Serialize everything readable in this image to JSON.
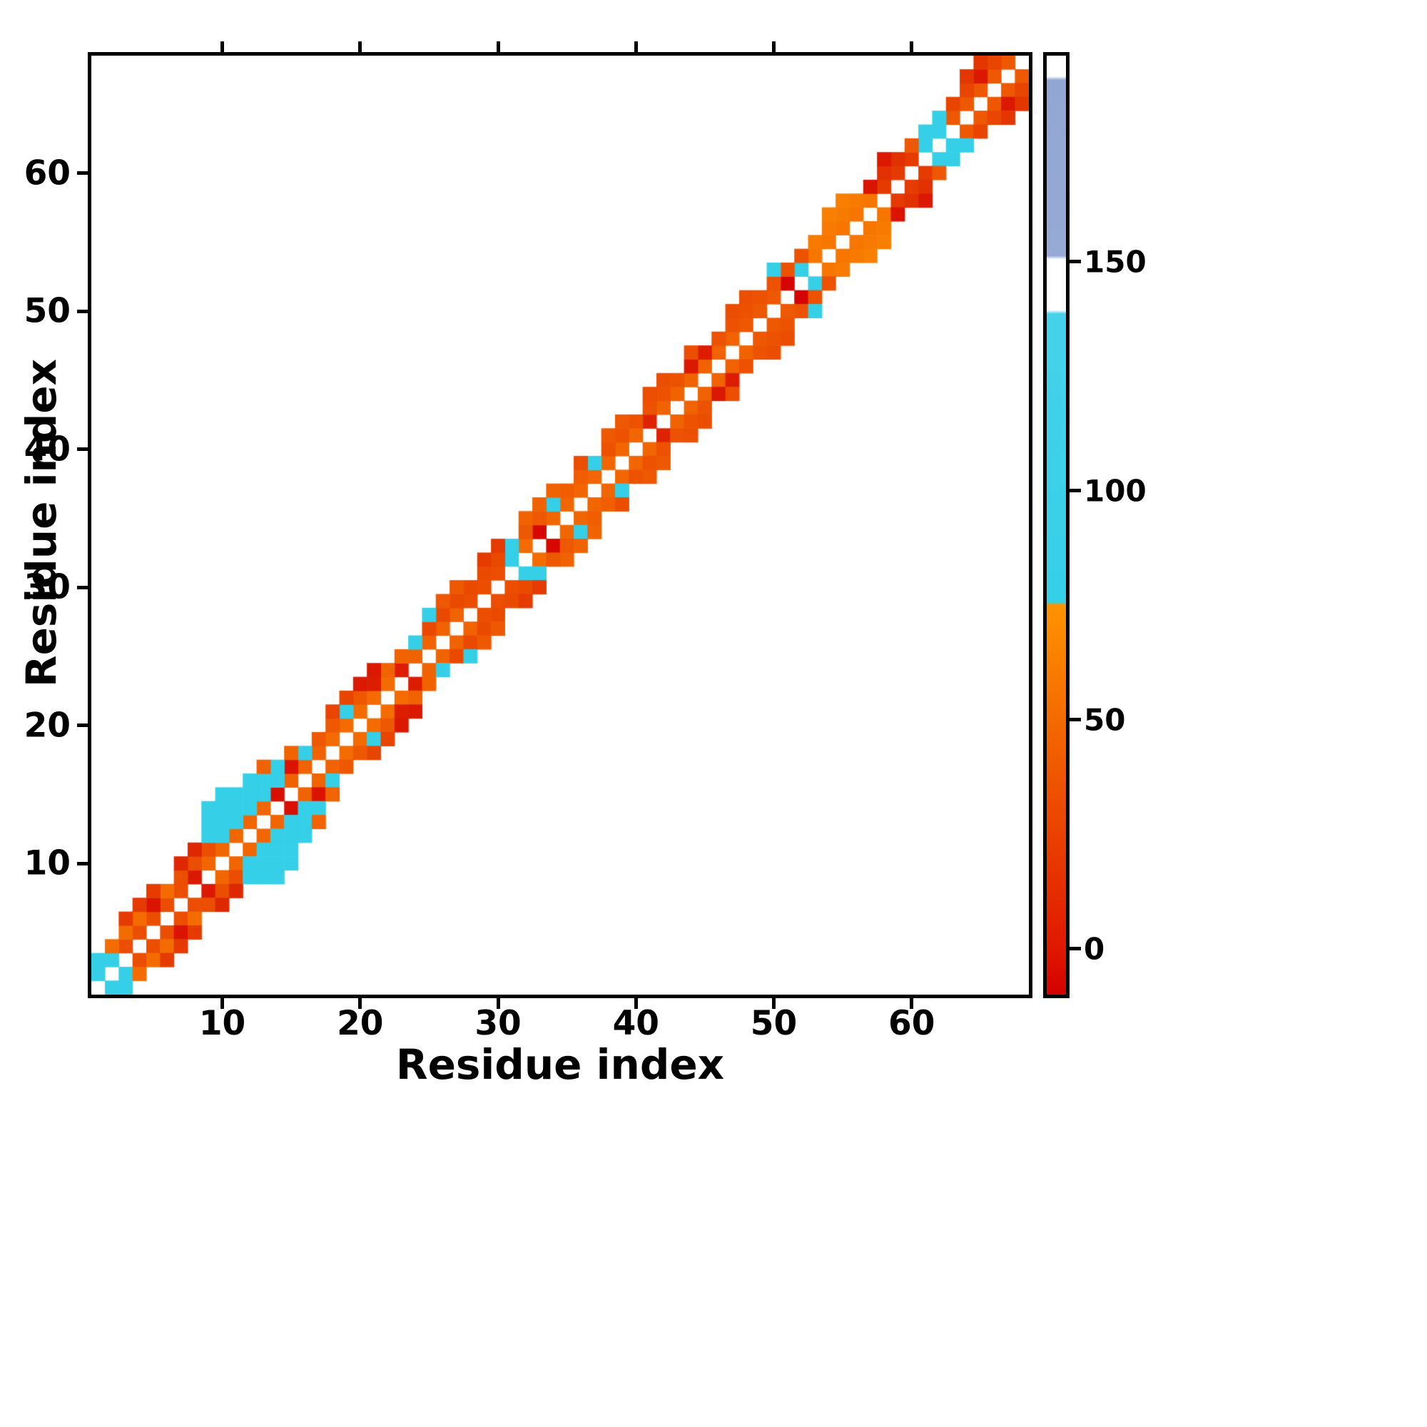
{
  "chart_data": {
    "type": "heatmap",
    "title": "",
    "xlabel": "Residue index",
    "ylabel": "Residue index",
    "x_ticks": [
      10,
      20,
      30,
      40,
      50,
      60
    ],
    "y_ticks": [
      10,
      20,
      30,
      40,
      50,
      60
    ],
    "axis_range": [
      0.5,
      68.5
    ],
    "n_residues": 68,
    "grid": false,
    "background_color": "#ffffff",
    "colors": {
      "low_red": "#d40000",
      "high_orange": "#ff9300",
      "cyan": "#35cfe8",
      "blue": "#97aad6",
      "empty": "#ffffff",
      "frame": "#000000"
    },
    "colorbar": {
      "position": "right",
      "vmin": -10,
      "vmax": 195,
      "ticks": [
        0,
        50,
        100,
        150
      ],
      "gradient_stops": [
        [
          0.0,
          "#d40000"
        ],
        [
          0.05,
          "#e01800"
        ],
        [
          0.415,
          "#ff9300"
        ],
        [
          0.418,
          "#35cfe8"
        ],
        [
          0.725,
          "#45d2ea"
        ],
        [
          0.729,
          "#ffffff"
        ],
        [
          0.783,
          "#ffffff"
        ],
        [
          0.787,
          "#97aad6"
        ],
        [
          0.974,
          "#92a6d4"
        ],
        [
          0.978,
          "#ffffff"
        ],
        [
          1.0,
          "#ffffff"
        ]
      ]
    },
    "bands_note": "Symmetric contact map: each band = [diagonal_offset, i_from, i_to, value]; cell (i,i+offset) and mirror (i+offset,i) get the value (colorbar units). Values <=75 map red->orange, 76-140 cyan, >140 light blue.",
    "bands": [
      [
        1,
        1,
        2,
        100
      ],
      [
        1,
        3,
        7,
        40
      ],
      [
        1,
        8,
        8,
        12
      ],
      [
        1,
        9,
        13,
        52
      ],
      [
        1,
        14,
        14,
        8
      ],
      [
        1,
        15,
        17,
        50
      ],
      [
        1,
        18,
        22,
        55
      ],
      [
        1,
        23,
        23,
        15
      ],
      [
        1,
        24,
        27,
        50
      ],
      [
        1,
        28,
        30,
        40
      ],
      [
        1,
        31,
        31,
        100
      ],
      [
        1,
        32,
        32,
        55
      ],
      [
        1,
        33,
        33,
        4
      ],
      [
        1,
        34,
        40,
        52
      ],
      [
        1,
        41,
        41,
        18
      ],
      [
        1,
        42,
        47,
        50
      ],
      [
        1,
        48,
        50,
        45
      ],
      [
        1,
        51,
        51,
        2
      ],
      [
        1,
        52,
        52,
        100
      ],
      [
        1,
        53,
        57,
        60
      ],
      [
        1,
        58,
        60,
        30
      ],
      [
        1,
        61,
        62,
        100
      ],
      [
        1,
        63,
        67,
        45
      ],
      [
        2,
        1,
        1,
        100
      ],
      [
        2,
        2,
        6,
        55
      ],
      [
        2,
        7,
        9,
        40
      ],
      [
        2,
        10,
        16,
        100
      ],
      [
        2,
        17,
        18,
        45
      ],
      [
        2,
        19,
        19,
        100
      ],
      [
        2,
        20,
        20,
        45
      ],
      [
        2,
        21,
        21,
        15
      ],
      [
        2,
        22,
        23,
        50
      ],
      [
        2,
        24,
        24,
        100
      ],
      [
        2,
        25,
        30,
        38
      ],
      [
        2,
        31,
        31,
        100
      ],
      [
        2,
        32,
        33,
        45
      ],
      [
        2,
        34,
        34,
        100
      ],
      [
        2,
        35,
        36,
        48
      ],
      [
        2,
        37,
        37,
        100
      ],
      [
        2,
        38,
        44,
        42
      ],
      [
        2,
        45,
        45,
        15
      ],
      [
        2,
        46,
        52,
        42
      ],
      [
        2,
        53,
        56,
        62
      ],
      [
        2,
        57,
        59,
        25
      ],
      [
        2,
        60,
        60,
        45
      ],
      [
        2,
        61,
        62,
        100
      ],
      [
        2,
        63,
        66,
        35
      ],
      [
        3,
        3,
        5,
        30
      ],
      [
        3,
        7,
        8,
        20
      ],
      [
        3,
        9,
        14,
        100
      ],
      [
        3,
        15,
        15,
        50
      ],
      [
        3,
        18,
        20,
        35
      ],
      [
        3,
        21,
        21,
        12
      ],
      [
        3,
        25,
        25,
        100
      ],
      [
        3,
        26,
        27,
        45
      ],
      [
        3,
        29,
        30,
        30
      ],
      [
        3,
        32,
        34,
        50
      ],
      [
        3,
        36,
        36,
        40
      ],
      [
        3,
        38,
        39,
        45
      ],
      [
        3,
        41,
        42,
        40
      ],
      [
        3,
        44,
        44,
        40
      ],
      [
        3,
        47,
        48,
        40
      ],
      [
        3,
        50,
        50,
        100
      ],
      [
        3,
        54,
        55,
        65
      ],
      [
        3,
        58,
        58,
        12
      ],
      [
        3,
        64,
        65,
        28
      ],
      [
        4,
        9,
        12,
        100
      ],
      [
        4,
        13,
        13,
        50
      ],
      [
        5,
        9,
        10,
        100
      ]
    ],
    "points": [
      [
        5,
        7,
        10
      ],
      [
        15,
        17,
        10
      ],
      [
        20,
        23,
        12
      ],
      [
        44,
        46,
        12
      ],
      [
        57,
        59,
        10
      ],
      [
        65,
        67,
        12
      ]
    ]
  }
}
